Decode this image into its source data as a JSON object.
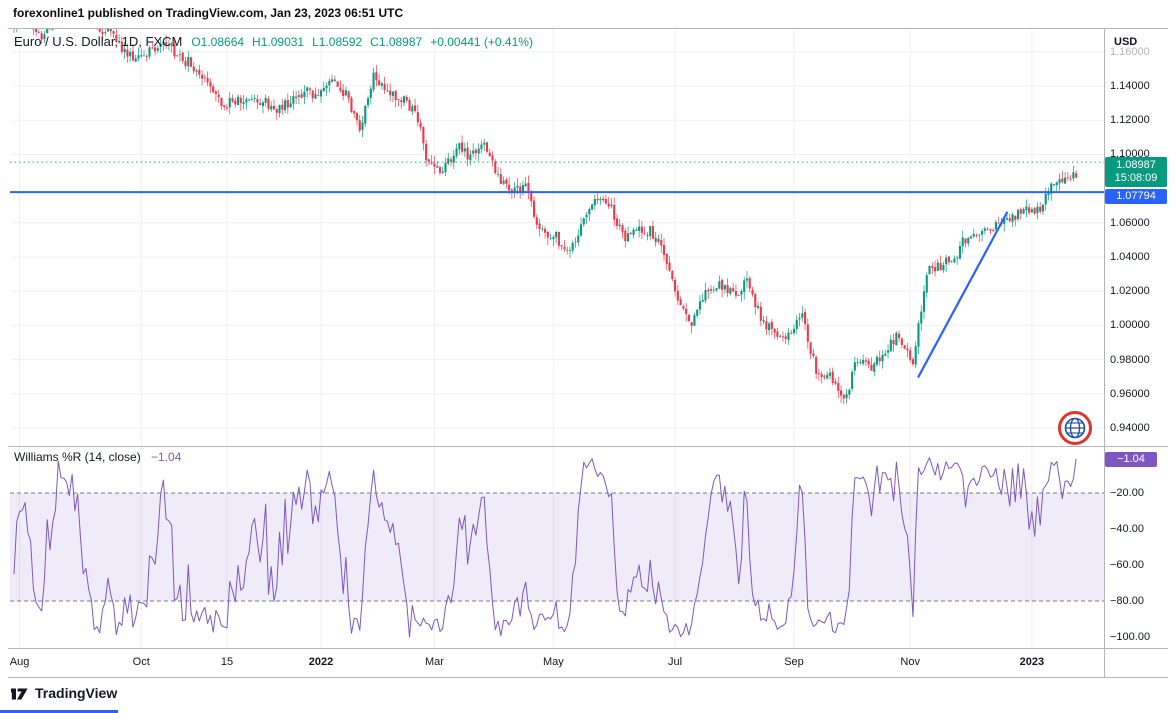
{
  "byline": "forexonline1 published on TradingView.com, Jan 23, 2023 06:51 UTC",
  "legend": {
    "symbol": "Euro / U.S. Dollar, 1D, FXCM",
    "values": [
      "O1.08664",
      "H1.09031",
      "L1.08592",
      "C1.08987"
    ],
    "change": "+0.00441 (+0.41%)"
  },
  "price_axis": {
    "currency": "USD",
    "ticks": [
      {
        "label": "1.16000",
        "price": 1.16,
        "muted": true
      },
      {
        "label": "1.14000",
        "price": 1.14
      },
      {
        "label": "1.12000",
        "price": 1.12
      },
      {
        "label": "1.10000",
        "price": 1.1
      },
      {
        "label": "1.06000",
        "price": 1.06
      },
      {
        "label": "1.04000",
        "price": 1.04
      },
      {
        "label": "1.02000",
        "price": 1.02
      },
      {
        "label": "1.00000",
        "price": 1.0
      },
      {
        "label": "0.98000",
        "price": 0.98
      },
      {
        "label": "0.96000",
        "price": 0.96
      },
      {
        "label": "0.94000",
        "price": 0.94
      }
    ]
  },
  "time_axis": {
    "labels": [
      {
        "label": "Aug",
        "day": 2
      },
      {
        "label": "Oct",
        "day": 46
      },
      {
        "label": "15",
        "day": 77
      },
      {
        "label": "2022",
        "day": 111,
        "bold": true
      },
      {
        "label": "Mar",
        "day": 152
      },
      {
        "label": "May",
        "day": 195
      },
      {
        "label": "Jul",
        "day": 239
      },
      {
        "label": "Sep",
        "day": 282
      },
      {
        "label": "Nov",
        "day": 324
      },
      {
        "label": "2023",
        "day": 368,
        "bold": true
      }
    ]
  },
  "badges": {
    "last_price": {
      "value": "1.08987",
      "countdown": "15:08:09",
      "color": "#089981"
    },
    "level_line": {
      "value": "1.07794",
      "color": "#2962FF"
    },
    "indicator": {
      "value": "−1.04",
      "color": "#7E57C2"
    }
  },
  "overlays": {
    "horizontal_line": {
      "price": 1.07794,
      "color": "#2962FF",
      "style": "solid"
    },
    "dotted_line": {
      "price": 1.0955,
      "color": "#089981",
      "style": "dotted"
    },
    "trendline": {
      "start_day": 327,
      "start_price": 0.97,
      "end_day": 359,
      "end_price": 1.066,
      "color": "#2962FF"
    }
  },
  "indicator_pane": {
    "title": "Williams %R (14, close)",
    "value": "−1.04",
    "ticks": [
      {
        "label": "−20.00",
        "value": -20
      },
      {
        "label": "−40.00",
        "value": -40
      },
      {
        "label": "−60.00",
        "value": -60
      },
      {
        "label": "−80.00",
        "value": -80
      },
      {
        "label": "−100.00",
        "value": -100
      }
    ]
  },
  "footer": {
    "brand": "TradingView"
  },
  "chart_data": {
    "type": "candlestick",
    "title": "Euro / U.S. Dollar, 1D, FXCM",
    "pair": "EUR/USD",
    "interval": "1D",
    "x_range": [
      "Aug 2021",
      "Jan 23, 2023"
    ],
    "ylim": [
      0.928,
      1.173
    ],
    "grid": true,
    "last_close": 1.08987,
    "last_change": "+0.00441 (+0.41%)",
    "colors": {
      "up": "#089981",
      "down": "#F23645"
    },
    "days_per_anchor": 5,
    "weekly_close_anchors": [
      1.1762,
      1.1797,
      1.1697,
      1.1795,
      1.188,
      1.1815,
      1.1725,
      1.172,
      1.1595,
      1.157,
      1.16,
      1.1645,
      1.156,
      1.152,
      1.1445,
      1.129,
      1.1315,
      1.131,
      1.1315,
      1.124,
      1.1325,
      1.137,
      1.136,
      1.141,
      1.134,
      1.115,
      1.145,
      1.135,
      1.132,
      1.127,
      1.093,
      1.091,
      1.105,
      1.098,
      1.105,
      1.088,
      1.079,
      1.08,
      1.055,
      1.054,
      1.041,
      1.056,
      1.0735,
      1.072,
      1.052,
      1.055,
      1.055,
      1.043,
      1.018,
      1.003,
      1.021,
      1.023,
      1.018,
      1.026,
      1.004,
      0.9965,
      0.995,
      1.004,
      0.975,
      0.969,
      0.956,
      0.98,
      0.973,
      0.986,
      0.996,
      0.976,
      1.032,
      1.0355,
      1.04,
      1.054,
      1.053,
      1.059,
      1.062,
      1.07,
      1.066,
      1.083,
      1.0855,
      1.08987
    ],
    "key_levels": {
      "dotted_resistance": 1.0955,
      "blue_line_support": 1.07794,
      "sep_2022_low": 0.9536,
      "last_close": 1.08987
    },
    "indicator": {
      "name": "Williams %R",
      "params": [
        14,
        "close"
      ],
      "last_value": -1.04,
      "range": [
        0,
        -100
      ],
      "band": [
        -20,
        -80
      ],
      "line_color": "#7E57C2"
    }
  }
}
